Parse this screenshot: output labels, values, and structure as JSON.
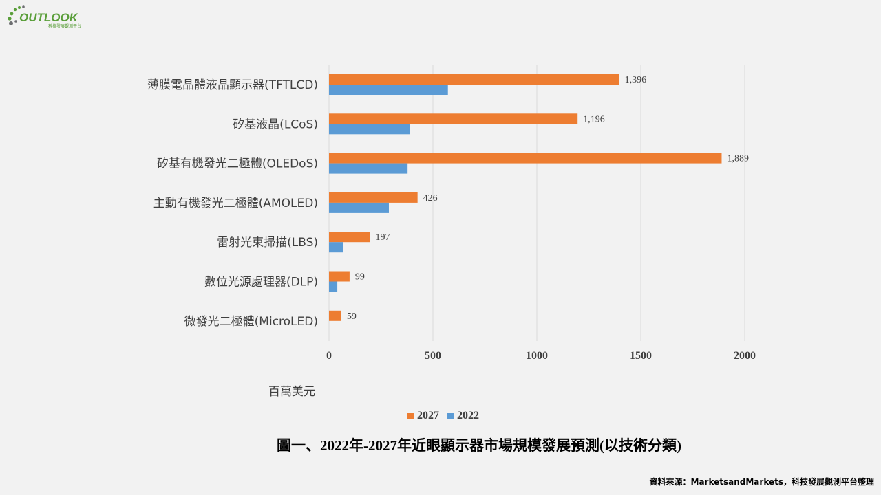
{
  "logo": {
    "brand_text": "OUTLOOK",
    "sub_text": "科技發展觀測平台"
  },
  "colors": {
    "series_2027": "#ed7d31",
    "series_2022": "#5b9bd5",
    "gridline": "#d9d9d9",
    "logo_green": "#5a9e3a",
    "logo_gray": "#6d6e71"
  },
  "unit_label": "百萬美元",
  "legend": {
    "items": [
      {
        "label": "2027",
        "color": "#ed7d31"
      },
      {
        "label": "2022",
        "color": "#5b9bd5"
      }
    ]
  },
  "caption": "圖一、2022年-2027年近眼顯示器市場規模發展預測(以技術分類)",
  "source": "資料來源：MarketsandMarkets，科技發展觀測平台整理",
  "chart_data": {
    "type": "bar",
    "orientation": "horizontal",
    "categories": [
      "薄膜電晶體液晶顯示器(TFTLCD)",
      "矽基液晶(LCoS)",
      "矽基有機發光二極體(OLEDoS)",
      "主動有機發光二極體(AMOLED)",
      "雷射光束掃描(LBS)",
      "數位光源處理器(DLP)",
      "微發光二極體(MicroLED)"
    ],
    "series": [
      {
        "name": "2027",
        "values": [
          1396,
          1196,
          1889,
          426,
          197,
          99,
          59
        ],
        "data_labels": [
          "1,396",
          "1,196",
          "1,889",
          "426",
          "197",
          "99",
          "59"
        ]
      },
      {
        "name": "2022",
        "values": [
          572,
          390,
          378,
          288,
          68,
          40,
          0
        ]
      }
    ],
    "xlabel": "百萬美元",
    "xlim": [
      0,
      2000
    ],
    "xticks": [
      "0",
      "500",
      "1000",
      "1500",
      "2000"
    ],
    "tick_values": [
      0,
      500,
      1000,
      1500,
      2000
    ],
    "grid": true,
    "legend_position": "bottom"
  }
}
